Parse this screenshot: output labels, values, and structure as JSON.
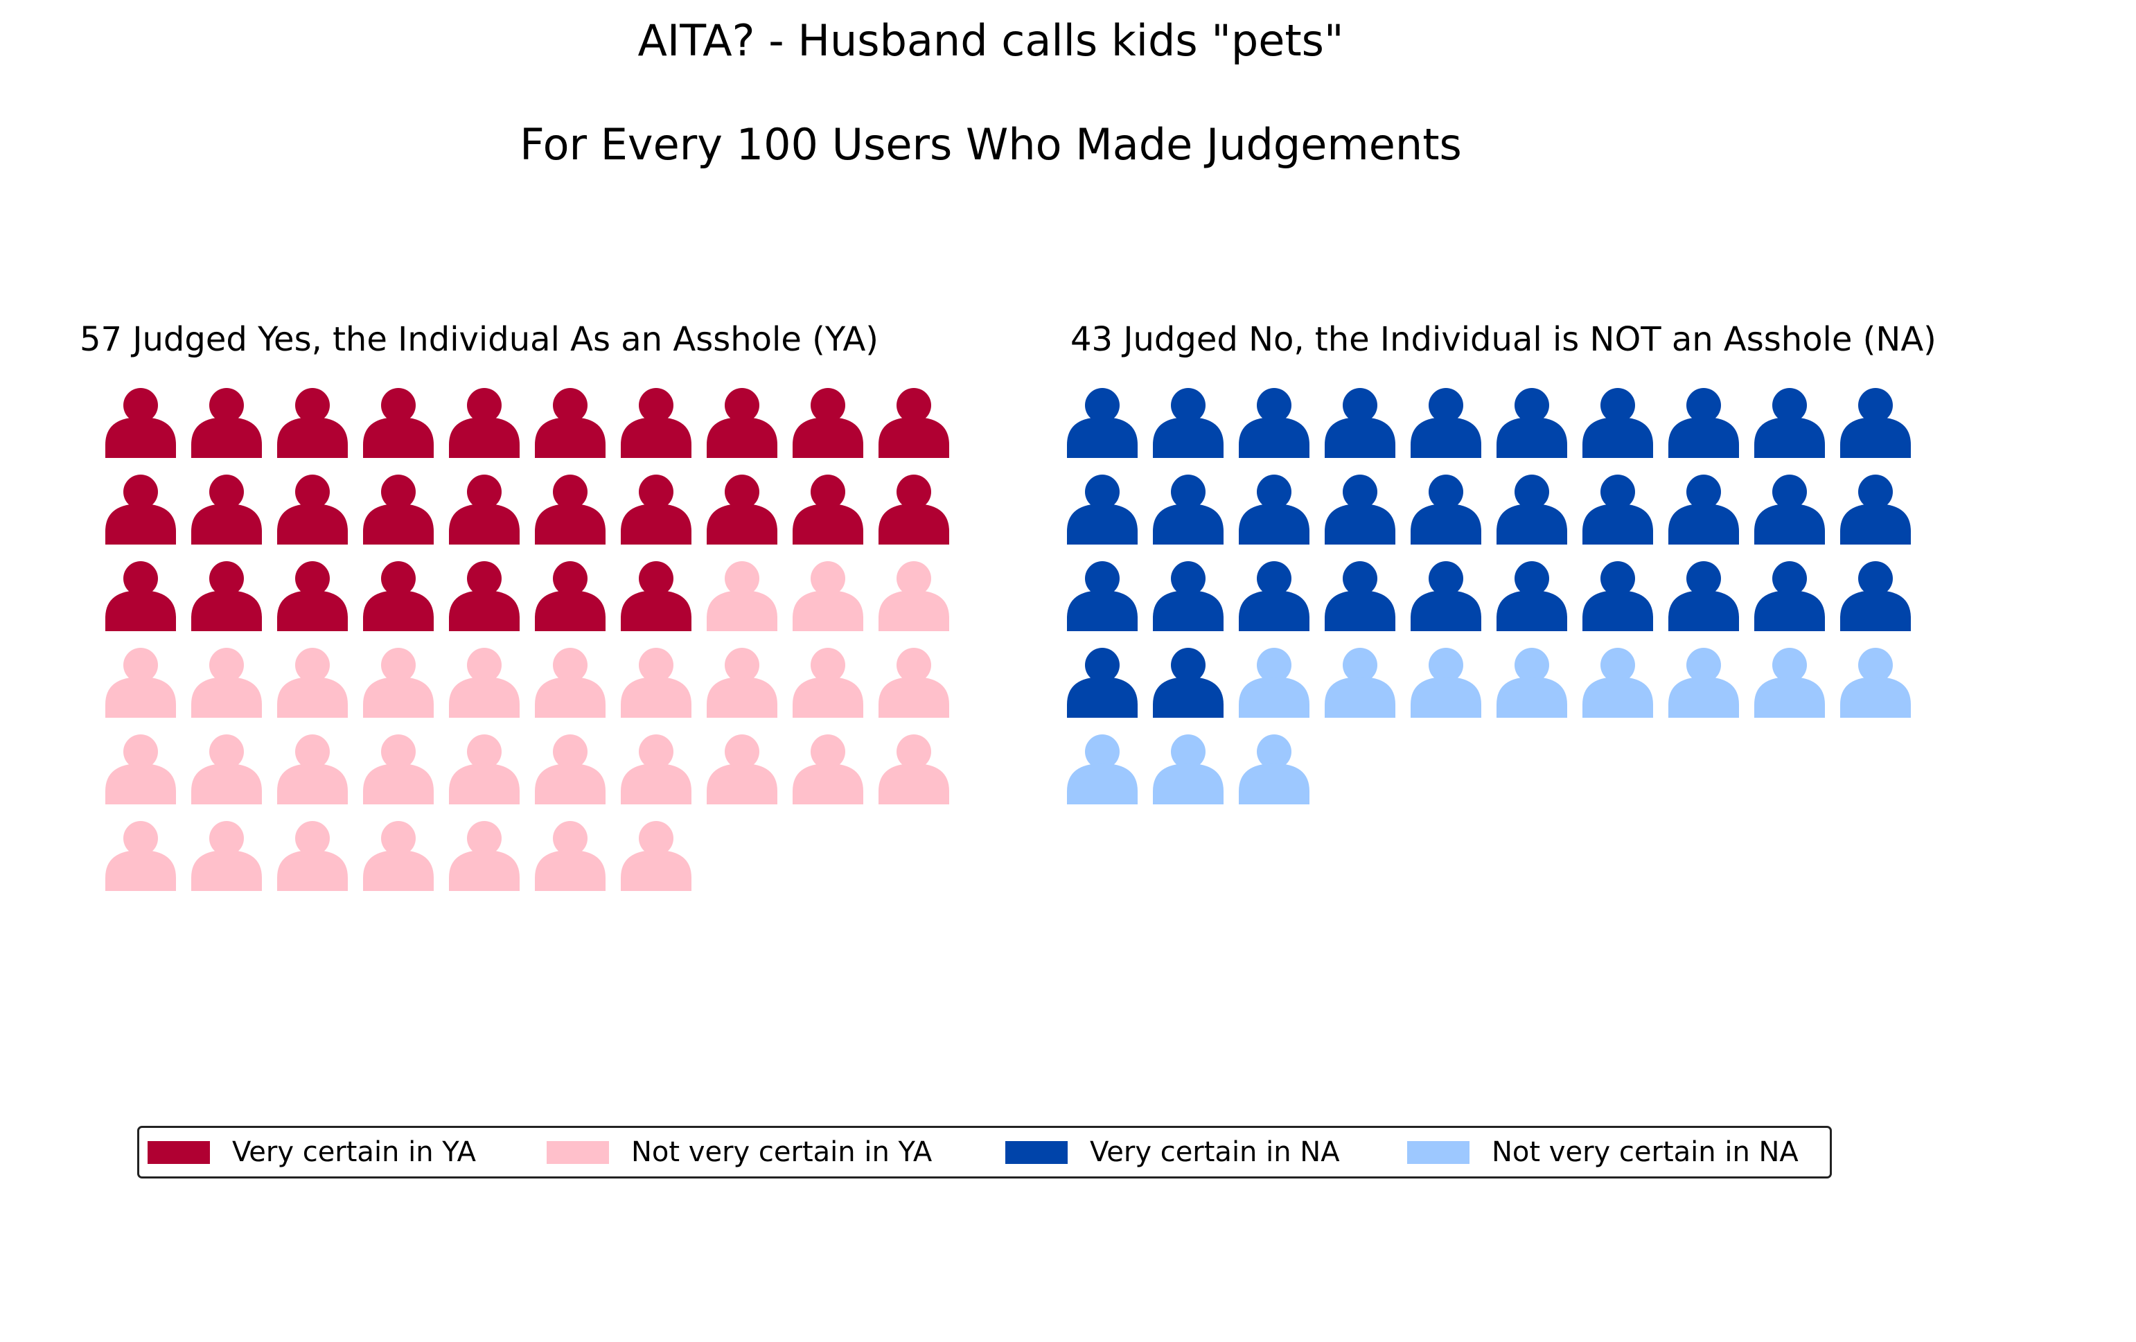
{
  "title_line1": "AITA? - Husband calls kids \"pets\"",
  "title_line2": "For Every 100 Users Who Made Judgements",
  "chart_data": [
    {
      "type": "pictogram",
      "title": "57 Judged Yes, the Individual As an Asshole (YA)",
      "total": 57,
      "columns": 10,
      "series": [
        {
          "name": "Very certain in YA",
          "values": [
            27
          ],
          "color": "#b00032"
        },
        {
          "name": "Not very certain in YA",
          "values": [
            30
          ],
          "color": "#ffc0cb"
        }
      ]
    },
    {
      "type": "pictogram",
      "title": "43 Judged No, the Individual is NOT an Asshole (NA)",
      "total": 43,
      "columns": 10,
      "series": [
        {
          "name": "Very certain in NA",
          "values": [
            32
          ],
          "color": "#0044aa"
        },
        {
          "name": "Not very certain in NA",
          "values": [
            11
          ],
          "color": "#9dc8ff"
        }
      ]
    }
  ],
  "legend": {
    "placement": "bottom",
    "items": [
      {
        "label": "Very certain in YA",
        "color": "#b00032"
      },
      {
        "label": "Not very certain in YA",
        "color": "#ffc0cb"
      },
      {
        "label": "Very certain in NA",
        "color": "#0044aa"
      },
      {
        "label": "Not very certain in NA",
        "color": "#9dc8ff"
      }
    ]
  }
}
